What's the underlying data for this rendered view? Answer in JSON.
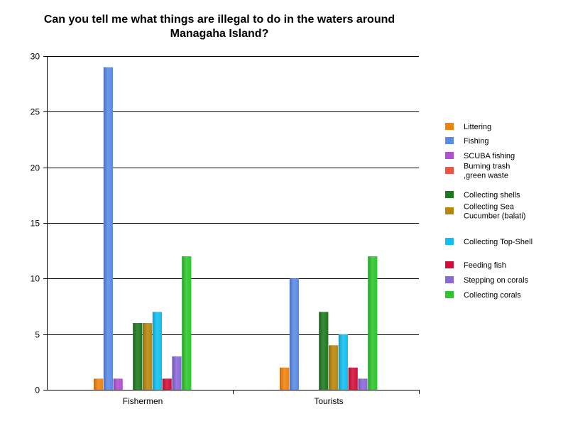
{
  "chart_data": {
    "type": "bar",
    "title_lines": [
      "Can you tell me what things are illegal to do in the waters around",
      "Managaha Island?"
    ],
    "categories": [
      "Fishermen",
      "Tourists"
    ],
    "ylim": [
      0,
      30
    ],
    "yticks": [
      0,
      5,
      10,
      15,
      20,
      25,
      30
    ],
    "grid": true,
    "legend_position": "right",
    "series": [
      {
        "name": "Littering",
        "label_lines": [
          "Littering"
        ],
        "color": "#f0820f",
        "values": [
          1,
          2
        ]
      },
      {
        "name": "Fishing",
        "label_lines": [
          "Fishing"
        ],
        "color": "#5b8ae6",
        "values": [
          29,
          10
        ]
      },
      {
        "name": "SCUBA fishing",
        "label_lines": [
          "SCUBA fishing"
        ],
        "color": "#b050d0",
        "values": [
          1,
          0
        ]
      },
      {
        "name": "Burning trash ,green waste",
        "label_lines": [
          "Burning trash",
          ",green waste"
        ],
        "color": "#ee5540",
        "values": [
          0,
          0
        ]
      },
      {
        "name": "Collecting shells",
        "label_lines": [
          "Collecting shells"
        ],
        "color": "#1e7a1e",
        "values": [
          6,
          7
        ]
      },
      {
        "name": "Collecting Sea Cucumber (balati)",
        "label_lines": [
          "Collecting Sea",
          "Cucumber (balati)"
        ],
        "color": "#b8860b",
        "values": [
          6,
          4
        ]
      },
      {
        "name": "Collecting Top-Shell",
        "label_lines": [
          "Collecting Top-Shell"
        ],
        "color": "#10bff0",
        "values": [
          7,
          5
        ]
      },
      {
        "name": "Feeding fish",
        "label_lines": [
          "Feeding fish"
        ],
        "color": "#d0103a",
        "values": [
          1,
          2
        ]
      },
      {
        "name": "Stepping on corals",
        "label_lines": [
          "Stepping on corals"
        ],
        "color": "#8a68d8",
        "values": [
          3,
          1
        ]
      },
      {
        "name": "Collecting corals",
        "label_lines": [
          "Collecting corals"
        ],
        "color": "#2ec62e",
        "values": [
          12,
          12
        ]
      }
    ]
  }
}
